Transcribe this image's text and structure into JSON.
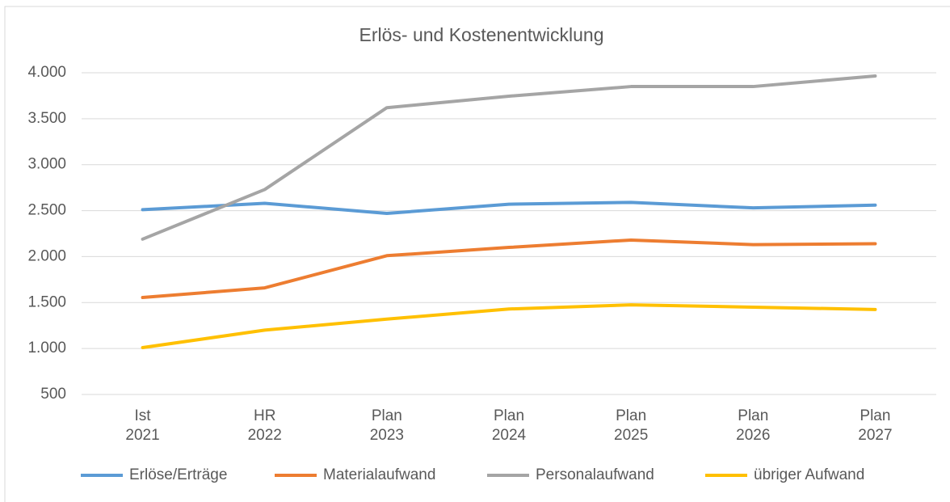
{
  "chart_data": {
    "type": "line",
    "title": "Erlös- und Kostenentwicklung",
    "categories": [
      [
        "Ist",
        "2021"
      ],
      [
        "HR",
        "2022"
      ],
      [
        "Plan",
        "2023"
      ],
      [
        "Plan",
        "2024"
      ],
      [
        "Plan",
        "2025"
      ],
      [
        "Plan",
        "2026"
      ],
      [
        "Plan",
        "2027"
      ]
    ],
    "series": [
      {
        "name": "Erlöse/Erträge",
        "color": "#5b9bd5",
        "values": [
          2510,
          2580,
          2470,
          2570,
          2590,
          2530,
          2560
        ]
      },
      {
        "name": "Materialaufwand",
        "color": "#ed7d31",
        "values": [
          1555,
          1660,
          2010,
          2100,
          2180,
          2130,
          2140
        ]
      },
      {
        "name": "Personalaufwand",
        "color": "#a5a5a5",
        "values": [
          2190,
          2730,
          3620,
          3745,
          3850,
          3850,
          3965
        ]
      },
      {
        "name": "übriger Aufwand",
        "color": "#ffc000",
        "values": [
          1010,
          1200,
          1320,
          1430,
          1475,
          1450,
          1425
        ]
      }
    ],
    "ylim": [
      500,
      4000
    ],
    "yticks": [
      {
        "value": 500,
        "label": "500"
      },
      {
        "value": 1000,
        "label": "1.000"
      },
      {
        "value": 1500,
        "label": "1.500"
      },
      {
        "value": 2000,
        "label": "2.000"
      },
      {
        "value": 2500,
        "label": "2.500"
      },
      {
        "value": 3000,
        "label": "3.000"
      },
      {
        "value": 3500,
        "label": "3.500"
      },
      {
        "value": 4000,
        "label": "4.000"
      }
    ],
    "grid": true,
    "legend": "bottom"
  }
}
